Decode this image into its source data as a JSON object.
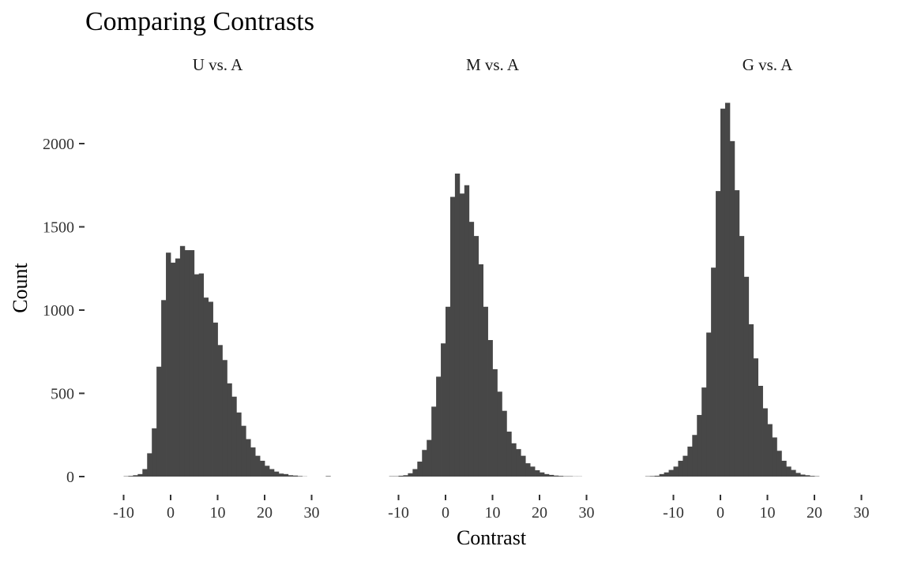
{
  "chart_data": {
    "type": "bar",
    "title": "Comparing Contrasts",
    "xlabel": "Contrast",
    "ylabel": "Count",
    "ylim": [
      0,
      2300
    ],
    "yticks": [
      0,
      500,
      1000,
      1500,
      2000
    ],
    "xlim": [
      -12,
      33
    ],
    "xticks": [
      -10,
      0,
      10,
      20,
      30
    ],
    "grid": false,
    "bar_color": "#474747",
    "bin_width": 1,
    "panels": [
      {
        "name": "U vs. A",
        "bin_starts": [
          -10,
          -9,
          -8,
          -7,
          -6,
          -5,
          -4,
          -3,
          -2,
          -1,
          0,
          1,
          2,
          3,
          4,
          5,
          6,
          7,
          8,
          9,
          10,
          11,
          12,
          13,
          14,
          15,
          16,
          17,
          18,
          19,
          20,
          21,
          22,
          23,
          24,
          25,
          26,
          27,
          28,
          29,
          30,
          31,
          32,
          33,
          34
        ],
        "values": [
          2,
          4,
          8,
          15,
          45,
          140,
          290,
          660,
          1060,
          1345,
          1285,
          1310,
          1385,
          1360,
          1360,
          1215,
          1220,
          1075,
          1050,
          925,
          790,
          700,
          560,
          480,
          385,
          305,
          225,
          175,
          125,
          95,
          65,
          45,
          30,
          18,
          15,
          8,
          6,
          3,
          1,
          0,
          0,
          0,
          0,
          3,
          0
        ]
      },
      {
        "name": "M vs. A",
        "bin_starts": [
          -12,
          -11,
          -10,
          -9,
          -8,
          -7,
          -6,
          -5,
          -4,
          -3,
          -2,
          -1,
          0,
          1,
          2,
          3,
          4,
          5,
          6,
          7,
          8,
          9,
          10,
          11,
          12,
          13,
          14,
          15,
          16,
          17,
          18,
          19,
          20,
          21,
          22,
          23,
          24,
          25,
          26,
          27,
          28
        ],
        "values": [
          2,
          2,
          5,
          8,
          20,
          45,
          90,
          160,
          220,
          420,
          600,
          800,
          1020,
          1680,
          1820,
          1700,
          1750,
          1530,
          1445,
          1275,
          1020,
          820,
          645,
          510,
          395,
          270,
          200,
          165,
          125,
          80,
          60,
          38,
          25,
          15,
          10,
          6,
          4,
          2,
          2,
          1,
          1
        ]
      },
      {
        "name": "G vs. A",
        "bin_starts": [
          -16,
          -15,
          -14,
          -13,
          -12,
          -11,
          -10,
          -9,
          -8,
          -7,
          -6,
          -5,
          -4,
          -3,
          -2,
          -1,
          0,
          1,
          2,
          3,
          4,
          5,
          6,
          7,
          8,
          9,
          10,
          11,
          12,
          13,
          14,
          15,
          16,
          17,
          18,
          19,
          20
        ],
        "values": [
          2,
          3,
          5,
          15,
          25,
          40,
          60,
          95,
          125,
          180,
          250,
          370,
          535,
          865,
          1255,
          1715,
          2210,
          2245,
          2015,
          1720,
          1445,
          1200,
          915,
          710,
          545,
          410,
          315,
          235,
          155,
          95,
          60,
          40,
          22,
          12,
          8,
          4,
          2
        ]
      }
    ]
  }
}
